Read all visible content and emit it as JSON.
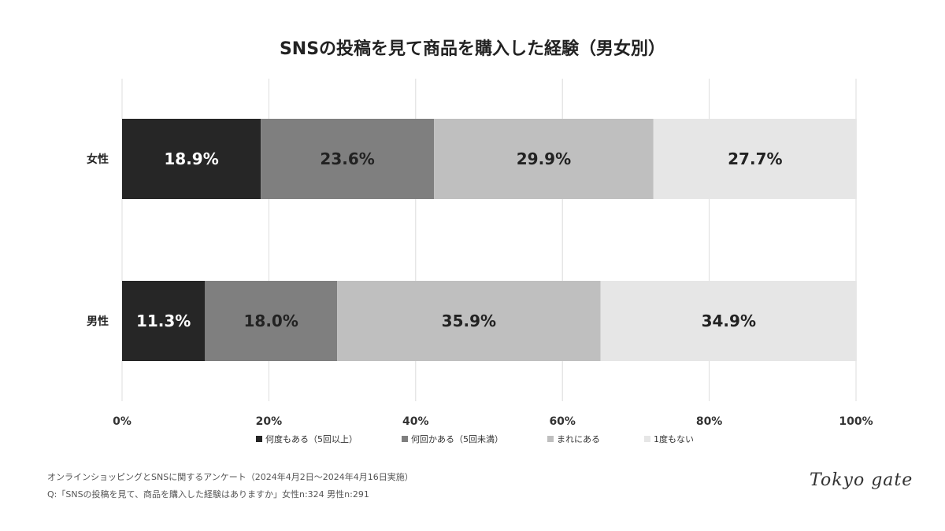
{
  "chart_data": {
    "type": "bar",
    "orientation": "horizontal",
    "stacked": true,
    "title": "SNSの投稿を見て商品を購入した経験（男女別）",
    "categories": [
      "女性",
      "男性"
    ],
    "series": [
      {
        "name": "何度もある（5回以上）",
        "values": [
          18.9,
          11.3
        ],
        "color": "#262626",
        "label_color": "#ffffff"
      },
      {
        "name": "何回かある（5回未満）",
        "values": [
          23.6,
          18.0
        ],
        "color": "#7f7f7f",
        "label_color": "#222222"
      },
      {
        "name": "まれにある",
        "values": [
          29.9,
          35.9
        ],
        "color": "#bfbfbf",
        "label_color": "#222222"
      },
      {
        "name": "1度もない",
        "values": [
          27.7,
          34.9
        ],
        "color": "#e6e6e6",
        "label_color": "#222222"
      }
    ],
    "xlim": [
      0,
      100
    ],
    "xticks": [
      "0%",
      "20%",
      "40%",
      "60%",
      "80%",
      "100%"
    ],
    "grid": true,
    "legend": "bottom"
  },
  "footer": {
    "line1": "オンラインショッピングとSNSに関するアンケート（2024年4月2日〜2024年4月16日実施）",
    "line2": "Q:「SNSの投稿を見て、商品を購入した経験はありますか」女性n:324 男性n:291"
  },
  "logo": "Tokyo gate"
}
